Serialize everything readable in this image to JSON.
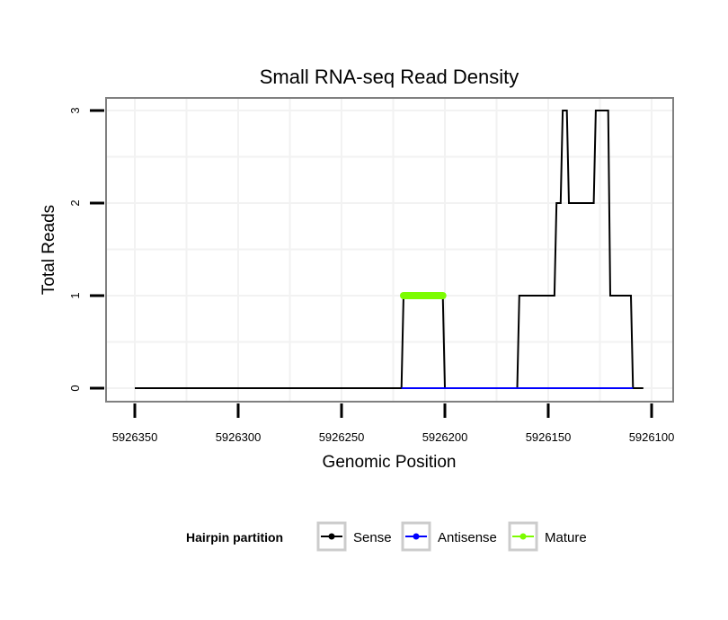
{
  "chart_data": {
    "type": "line",
    "title": "Small RNA-seq Read Density",
    "xlabel": "Genomic Position",
    "ylabel": "Total Reads",
    "xlim": [
      5926100,
      5926350
    ],
    "x_reversed": true,
    "ylim": [
      0,
      3
    ],
    "xticks": [
      5926350,
      5926300,
      5926250,
      5926200,
      5926150,
      5926100
    ],
    "xtick_labels": [
      "5926350",
      "5926300",
      "5926250",
      "5926200",
      "5926150",
      "5926100"
    ],
    "yticks": [
      0,
      1,
      2,
      3
    ],
    "ytick_labels": [
      "0",
      "1",
      "2",
      "3"
    ],
    "grid": true,
    "legend": {
      "title": "Hairpin partition",
      "position": "bottom",
      "entries": [
        "Sense",
        "Antisense",
        "Mature"
      ]
    },
    "series": [
      {
        "name": "Sense",
        "color": "#000000",
        "x": [
          5926350,
          5926221,
          5926220,
          5926201,
          5926200,
          5926165,
          5926164,
          5926147,
          5926146,
          5926144,
          5926143,
          5926141,
          5926140,
          5926128,
          5926127,
          5926121,
          5926120,
          5926110,
          5926109,
          5926104
        ],
        "y": [
          0,
          0,
          1,
          1,
          0,
          0,
          1,
          1,
          2,
          2,
          3,
          3,
          2,
          2,
          3,
          3,
          1,
          1,
          0,
          0
        ]
      },
      {
        "name": "Antisense",
        "color": "#0000ff",
        "x": [
          5926221,
          5926200,
          5926165,
          5926109
        ],
        "y": [
          0,
          0,
          0,
          0
        ]
      },
      {
        "name": "Mature",
        "color": "#7cfc00",
        "x": [
          5926220,
          5926201
        ],
        "y": [
          1,
          1
        ]
      }
    ]
  }
}
